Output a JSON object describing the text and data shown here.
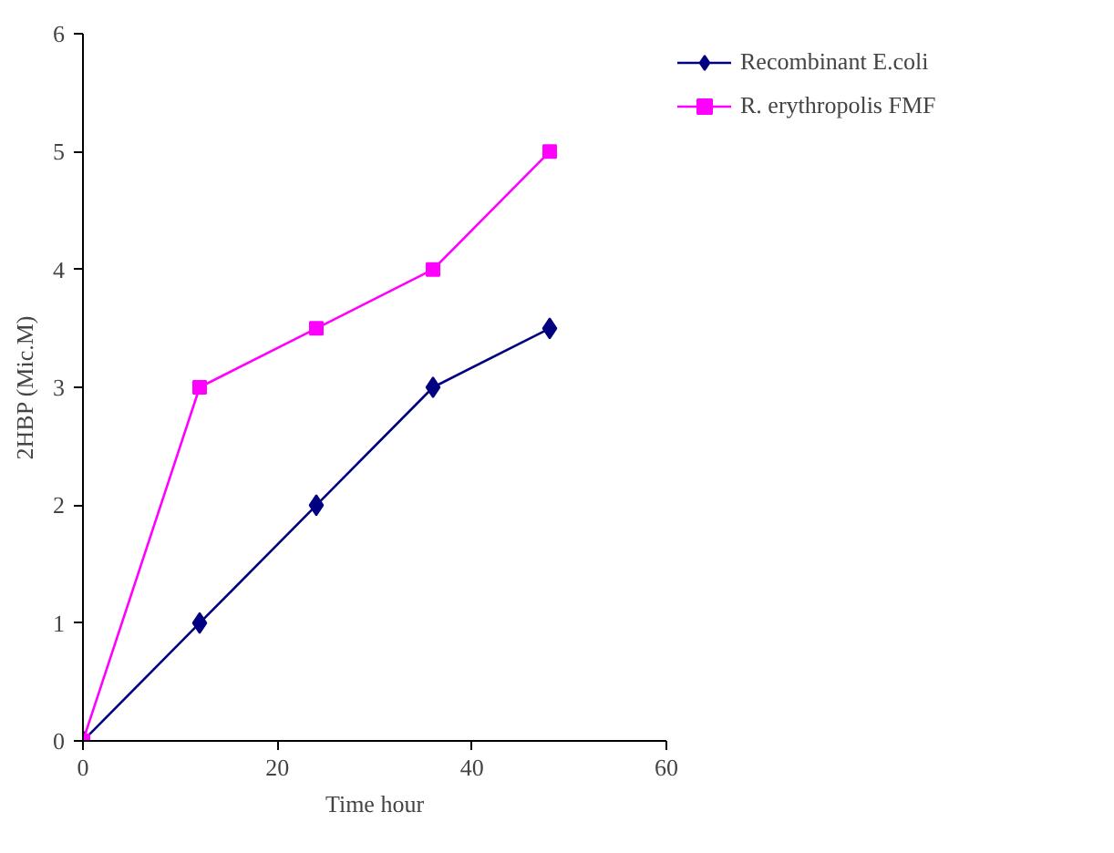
{
  "chart_data": {
    "type": "line",
    "xlabel": "Time hour",
    "ylabel": "2HBP (Mic.M)",
    "x": [
      0,
      12,
      24,
      36,
      48
    ],
    "series": [
      {
        "name": "Recombinant E.coli",
        "color": "#000080",
        "values": [
          0,
          1,
          2,
          3,
          3.5
        ],
        "marker": "diamond"
      },
      {
        "name": "R. erythropolis FMF",
        "color": "#ff00ff",
        "values": [
          0,
          3,
          3.5,
          4,
          5
        ],
        "marker": "square"
      }
    ],
    "xlim": [
      0,
      60
    ],
    "xticks": [
      0,
      20,
      40,
      60
    ],
    "ylim": [
      0,
      6
    ],
    "yticks": [
      0,
      1,
      2,
      3,
      4,
      5,
      6
    ],
    "grid": false,
    "legend": "right"
  }
}
